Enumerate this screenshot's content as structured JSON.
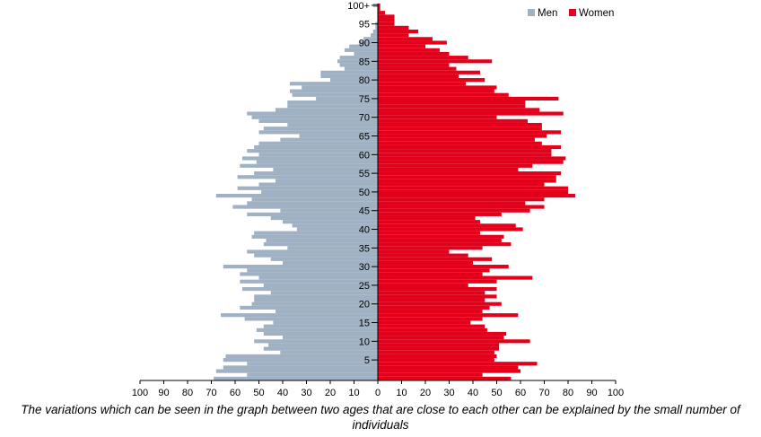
{
  "chart_data": {
    "type": "bar",
    "orientation": "horizontal-population-pyramid",
    "legend_position": "top-right",
    "grid": false,
    "xlim": [
      -100,
      100
    ],
    "ylim": [
      0,
      101
    ],
    "x_ticks": [
      {
        "value": -100,
        "label": "100"
      },
      {
        "value": -90,
        "label": "90"
      },
      {
        "value": -80,
        "label": "80"
      },
      {
        "value": -70,
        "label": "70"
      },
      {
        "value": -60,
        "label": "60"
      },
      {
        "value": -50,
        "label": "50"
      },
      {
        "value": -40,
        "label": "40"
      },
      {
        "value": -30,
        "label": "30"
      },
      {
        "value": -20,
        "label": "20"
      },
      {
        "value": -10,
        "label": "10"
      },
      {
        "value": 0,
        "label": "0"
      },
      {
        "value": 10,
        "label": "10"
      },
      {
        "value": 20,
        "label": "20"
      },
      {
        "value": 30,
        "label": "30"
      },
      {
        "value": 40,
        "label": "40"
      },
      {
        "value": 50,
        "label": "50"
      },
      {
        "value": 60,
        "label": "60"
      },
      {
        "value": 70,
        "label": "70"
      },
      {
        "value": 80,
        "label": "80"
      },
      {
        "value": 90,
        "label": "90"
      },
      {
        "value": 100,
        "label": "100"
      }
    ],
    "y_ticks": [
      {
        "age": 5,
        "label": "5"
      },
      {
        "age": 10,
        "label": "10"
      },
      {
        "age": 15,
        "label": "15"
      },
      {
        "age": 20,
        "label": "20"
      },
      {
        "age": 25,
        "label": "25"
      },
      {
        "age": 30,
        "label": "30"
      },
      {
        "age": 35,
        "label": "35"
      },
      {
        "age": 40,
        "label": "40"
      },
      {
        "age": 45,
        "label": "45"
      },
      {
        "age": 50,
        "label": "50"
      },
      {
        "age": 55,
        "label": "55"
      },
      {
        "age": 60,
        "label": "60"
      },
      {
        "age": 65,
        "label": "65"
      },
      {
        "age": 70,
        "label": "70"
      },
      {
        "age": 75,
        "label": "75"
      },
      {
        "age": 80,
        "label": "80"
      },
      {
        "age": 85,
        "label": "85"
      },
      {
        "age": 90,
        "label": "90"
      },
      {
        "age": 95,
        "label": "95"
      },
      {
        "age": 100,
        "label": "100+"
      }
    ],
    "ages": [
      0,
      1,
      2,
      3,
      4,
      5,
      6,
      7,
      8,
      9,
      10,
      11,
      12,
      13,
      14,
      15,
      16,
      17,
      18,
      19,
      20,
      21,
      22,
      23,
      24,
      25,
      26,
      27,
      28,
      29,
      30,
      31,
      32,
      33,
      34,
      35,
      36,
      37,
      38,
      39,
      40,
      41,
      42,
      43,
      44,
      45,
      46,
      47,
      48,
      49,
      50,
      51,
      52,
      53,
      54,
      55,
      56,
      57,
      58,
      59,
      60,
      61,
      62,
      63,
      64,
      65,
      66,
      67,
      68,
      69,
      70,
      71,
      72,
      73,
      74,
      75,
      76,
      77,
      78,
      79,
      80,
      81,
      82,
      83,
      84,
      85,
      86,
      87,
      88,
      89,
      90,
      91,
      92,
      93,
      94,
      95,
      96,
      97,
      98,
      99,
      100
    ],
    "series": [
      {
        "name": "Men",
        "color": "#9fb1c2",
        "values": [
          69,
          55,
          68,
          65,
          55,
          65,
          64,
          41,
          48,
          46,
          52,
          40,
          48,
          51,
          48,
          44,
          56,
          66,
          43,
          58,
          53,
          52,
          52,
          45,
          57,
          48,
          58,
          50,
          58,
          55,
          65,
          40,
          45,
          52,
          55,
          38,
          48,
          47,
          53,
          52,
          34,
          36,
          40,
          45,
          55,
          41,
          61,
          55,
          53,
          68,
          49,
          59,
          50,
          43,
          59,
          52,
          44,
          58,
          51,
          57,
          50,
          55,
          52,
          50,
          41,
          33,
          50,
          48,
          38,
          50,
          53,
          55,
          43,
          38,
          38,
          26,
          36,
          37,
          32,
          37,
          20,
          24,
          24,
          14,
          16,
          17,
          16,
          10,
          14,
          12,
          8,
          6,
          3,
          2,
          1,
          1,
          0,
          0,
          0,
          0,
          2
        ]
      },
      {
        "name": "Women",
        "color": "#e3001b",
        "values": [
          56,
          44,
          60,
          59,
          67,
          49,
          50,
          49,
          51,
          51,
          64,
          53,
          54,
          46,
          45,
          39,
          44,
          59,
          44,
          47,
          52,
          45,
          50,
          45,
          50,
          38,
          50,
          65,
          44,
          47,
          55,
          40,
          48,
          38,
          30,
          44,
          56,
          52,
          53,
          43,
          61,
          58,
          43,
          41,
          52,
          64,
          70,
          62,
          70,
          83,
          80,
          80,
          70,
          75,
          75,
          77,
          59,
          65,
          78,
          79,
          73,
          73,
          77,
          69,
          66,
          71,
          77,
          69,
          69,
          63,
          50,
          78,
          68,
          62,
          62,
          76,
          55,
          49,
          50,
          37,
          45,
          34,
          43,
          33,
          30,
          48,
          38,
          30,
          26,
          20,
          29,
          23,
          13,
          17,
          13,
          7,
          7,
          7,
          3,
          1,
          1
        ]
      }
    ]
  },
  "caption": "The variations which can be seen in the graph between two ages that are close to each other can be explained by the small number of individuals"
}
